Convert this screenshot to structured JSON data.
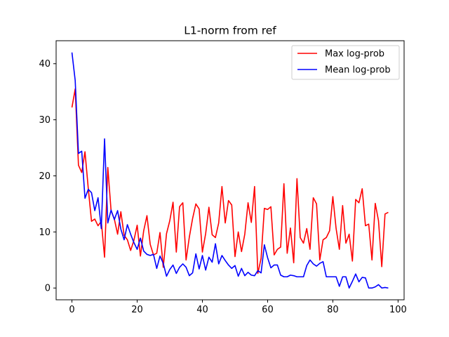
{
  "chart_data": {
    "type": "line",
    "title": "L1-norm from ref",
    "xlabel": "",
    "ylabel": "",
    "xlim": [
      -4.85,
      101.85
    ],
    "ylim": [
      -2.1,
      44.1
    ],
    "xticks": [
      0,
      20,
      40,
      60,
      80,
      100
    ],
    "yticks": [
      0,
      10,
      20,
      30,
      40
    ],
    "grid": false,
    "legend_position": "top-right",
    "series": [
      {
        "name": "Max log-prob",
        "color": "#ff0000",
        "x": [
          0,
          1,
          2,
          3,
          4,
          5,
          6,
          7,
          8,
          9,
          10,
          11,
          12,
          13,
          14,
          15,
          16,
          17,
          18,
          19,
          20,
          21,
          22,
          23,
          24,
          25,
          26,
          27,
          28,
          29,
          30,
          31,
          32,
          33,
          34,
          35,
          36,
          37,
          38,
          39,
          40,
          41,
          42,
          43,
          44,
          45,
          46,
          47,
          48,
          49,
          50,
          51,
          52,
          53,
          54,
          55,
          56,
          57,
          58,
          59,
          60,
          61,
          62,
          63,
          64,
          65,
          66,
          67,
          68,
          69,
          70,
          71,
          72,
          73,
          74,
          75,
          76,
          77,
          78,
          79,
          80,
          81,
          82,
          83,
          84,
          85,
          86,
          87,
          88,
          89,
          90,
          91,
          92,
          93,
          94,
          95,
          96,
          97
        ],
        "y": [
          32.2,
          35.5,
          21.9,
          20.6,
          24.3,
          17.8,
          11.9,
          12.3,
          11.1,
          11.9,
          5.5,
          21.5,
          13.8,
          12.3,
          9.6,
          13.6,
          9.4,
          8.6,
          6.7,
          8.5,
          11.2,
          5.7,
          10.2,
          12.9,
          7.8,
          5.9,
          6.2,
          9.9,
          3.7,
          9.7,
          12.0,
          15.3,
          6.4,
          14.5,
          15.2,
          5.0,
          9.1,
          12.4,
          15.0,
          14.1,
          6.4,
          9.7,
          14.4,
          9.5,
          9.0,
          11.6,
          18.1,
          11.6,
          15.6,
          14.8,
          5.6,
          10.0,
          6.5,
          9.6,
          15.2,
          11.7,
          18.1,
          2.6,
          5.3,
          14.2,
          14.0,
          14.5,
          5.9,
          6.9,
          7.3,
          18.6,
          6.2,
          10.7,
          4.5,
          19.5,
          9.0,
          8.0,
          10.6,
          6.9,
          16.1,
          15.0,
          5.0,
          8.6,
          9.0,
          10.2,
          16.3,
          10.6,
          6.9,
          14.7,
          8.0,
          9.6,
          4.8,
          15.8,
          15.2,
          17.7,
          11.1,
          11.4,
          5.0,
          15.1,
          12.0,
          3.8,
          13.2,
          13.5
        ]
      },
      {
        "name": "Mean log-prob",
        "color": "#0000ff",
        "x": [
          0,
          1,
          2,
          3,
          4,
          5,
          6,
          7,
          8,
          9,
          10,
          11,
          12,
          13,
          14,
          15,
          16,
          17,
          18,
          19,
          20,
          21,
          22,
          23,
          24,
          25,
          26,
          27,
          28,
          29,
          30,
          31,
          32,
          33,
          34,
          35,
          36,
          37,
          38,
          39,
          40,
          41,
          42,
          43,
          44,
          45,
          46,
          47,
          48,
          49,
          50,
          51,
          52,
          53,
          54,
          55,
          56,
          57,
          58,
          59,
          60,
          61,
          62,
          63,
          64,
          65,
          66,
          67,
          68,
          69,
          70,
          71,
          72,
          73,
          74,
          75,
          76,
          77,
          78,
          79,
          80,
          81,
          82,
          83,
          84,
          85,
          86,
          87,
          88,
          89,
          90,
          91,
          92,
          93,
          94,
          95,
          96,
          97
        ],
        "y": [
          42.0,
          37.0,
          24.0,
          24.4,
          16.0,
          17.6,
          17.0,
          13.8,
          16.1,
          10.6,
          26.6,
          11.6,
          13.9,
          12.2,
          13.8,
          10.5,
          8.6,
          11.3,
          9.6,
          8.1,
          6.9,
          8.9,
          6.6,
          6.0,
          5.8,
          6.0,
          3.5,
          5.7,
          4.4,
          2.1,
          3.3,
          4.1,
          2.6,
          3.7,
          4.3,
          3.7,
          2.2,
          2.7,
          6.1,
          3.4,
          5.8,
          3.2,
          5.5,
          4.6,
          7.9,
          4.3,
          5.8,
          4.9,
          4.1,
          3.5,
          4.0,
          2.1,
          3.5,
          2.2,
          2.8,
          2.3,
          2.2,
          3.1,
          2.7,
          7.7,
          5.4,
          3.6,
          4.1,
          4.1,
          2.3,
          2.0,
          2.0,
          2.3,
          2.2,
          2.0,
          2.0,
          2.0,
          4.0,
          5.0,
          4.3,
          3.9,
          4.4,
          4.7,
          2.0,
          2.0,
          2.0,
          2.0,
          0.3,
          2.0,
          2.0,
          0.0,
          1.2,
          2.5,
          1.1,
          1.9,
          1.8,
          0.0,
          0.0,
          0.2,
          0.6,
          0.0,
          0.1,
          0.0
        ]
      }
    ]
  }
}
